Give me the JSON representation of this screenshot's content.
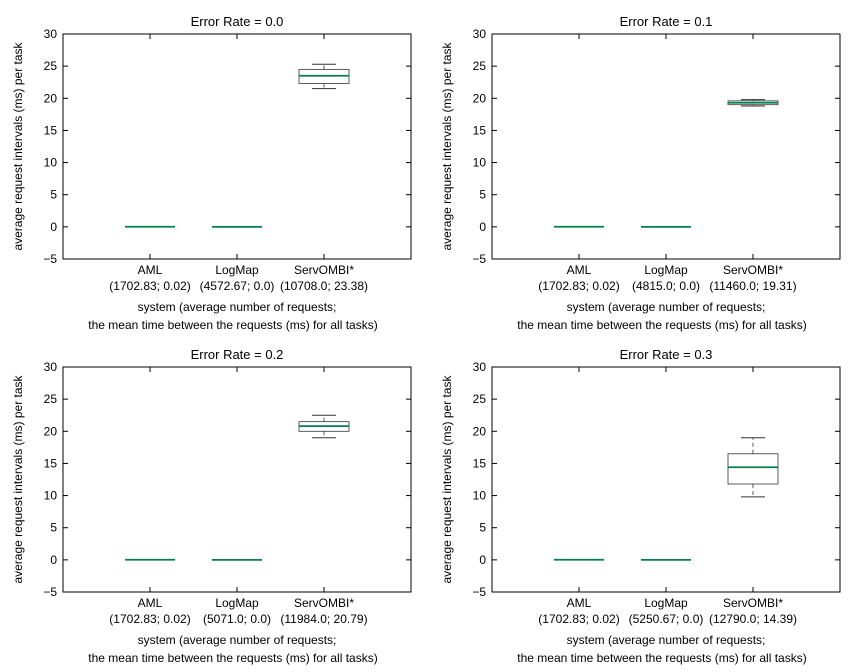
{
  "chart_data": [
    {
      "type": "box",
      "title": "Error Rate = 0.0",
      "ylabel": "average request intervals (ms) per task",
      "xlabel_line1": "system (average number of requests;",
      "xlabel_line2": "the mean time between the requests (ms) for all tasks)",
      "ylim": [
        -5,
        30
      ],
      "yticks": [
        "30",
        "25",
        "20",
        "15",
        "10",
        "5",
        "0",
        "−5"
      ],
      "categories": [
        "AML",
        "LogMap",
        "ServOMBI*"
      ],
      "sublabels": [
        "(1702.83; 0.02)",
        "(4572.67; 0.0)",
        "(10708.0; 23.38)"
      ],
      "boxes": [
        {
          "whislo": 0.02,
          "q1": 0.02,
          "med": 0.02,
          "q3": 0.02,
          "whishi": 0.02
        },
        {
          "whislo": 0.0,
          "q1": 0.0,
          "med": 0.0,
          "q3": 0.0,
          "whishi": 0.0
        },
        {
          "whislo": 21.5,
          "q1": 22.3,
          "med": 23.5,
          "q3": 24.5,
          "whishi": 25.3
        }
      ]
    },
    {
      "type": "box",
      "title": "Error Rate = 0.1",
      "ylabel": "average request intervals (ms) per task",
      "xlabel_line1": "system (average number of requests;",
      "xlabel_line2": "the mean time between the requests (ms) for all tasks)",
      "ylim": [
        -5,
        30
      ],
      "yticks": [
        "30",
        "25",
        "20",
        "15",
        "10",
        "5",
        "0",
        "−5"
      ],
      "categories": [
        "AML",
        "LogMap",
        "ServOMBI*"
      ],
      "sublabels": [
        "(1702.83; 0.02)",
        "(4815.0; 0.0)",
        "(11460.0; 19.31)"
      ],
      "boxes": [
        {
          "whislo": 0.02,
          "q1": 0.02,
          "med": 0.02,
          "q3": 0.02,
          "whishi": 0.02
        },
        {
          "whislo": 0.0,
          "q1": 0.0,
          "med": 0.0,
          "q3": 0.0,
          "whishi": 0.0
        },
        {
          "whislo": 18.8,
          "q1": 19.0,
          "med": 19.3,
          "q3": 19.6,
          "whishi": 19.8
        }
      ]
    },
    {
      "type": "box",
      "title": "Error Rate = 0.2",
      "ylabel": "average request intervals (ms) per task",
      "xlabel_line1": "system (average number of requests;",
      "xlabel_line2": "the mean time between the requests (ms) for all tasks)",
      "ylim": [
        -5,
        30
      ],
      "yticks": [
        "30",
        "25",
        "20",
        "15",
        "10",
        "5",
        "0",
        "−5"
      ],
      "categories": [
        "AML",
        "LogMap",
        "ServOMBI*"
      ],
      "sublabels": [
        "(1702.83; 0.02)",
        "(5071.0; 0.0)",
        "(11984.0; 20.79)"
      ],
      "boxes": [
        {
          "whislo": 0.02,
          "q1": 0.02,
          "med": 0.02,
          "q3": 0.02,
          "whishi": 0.02
        },
        {
          "whislo": 0.0,
          "q1": 0.0,
          "med": 0.0,
          "q3": 0.0,
          "whishi": 0.0
        },
        {
          "whislo": 19.0,
          "q1": 20.0,
          "med": 20.8,
          "q3": 21.5,
          "whishi": 22.5
        }
      ]
    },
    {
      "type": "box",
      "title": "Error Rate = 0.3",
      "ylabel": "average request intervals (ms) per task",
      "xlabel_line1": "system (average number of requests;",
      "xlabel_line2": "the mean time between the requests (ms) for all tasks)",
      "ylim": [
        -5,
        30
      ],
      "yticks": [
        "30",
        "25",
        "20",
        "15",
        "10",
        "5",
        "0",
        "−5"
      ],
      "categories": [
        "AML",
        "LogMap",
        "ServOMBI*"
      ],
      "sublabels": [
        "(1702.83; 0.02)",
        "(5250.67; 0.0)",
        "(12790.0; 14.39)"
      ],
      "boxes": [
        {
          "whislo": 0.02,
          "q1": 0.02,
          "med": 0.02,
          "q3": 0.02,
          "whishi": 0.02
        },
        {
          "whislo": 0.0,
          "q1": 0.0,
          "med": 0.0,
          "q3": 0.0,
          "whishi": 0.0
        },
        {
          "whislo": 9.8,
          "q1": 11.8,
          "med": 14.4,
          "q3": 16.5,
          "whishi": 19.0
        }
      ]
    }
  ],
  "colors": {
    "median": "#00804a",
    "box": "#333333",
    "whisker": "#333333",
    "axis": "#000000"
  }
}
